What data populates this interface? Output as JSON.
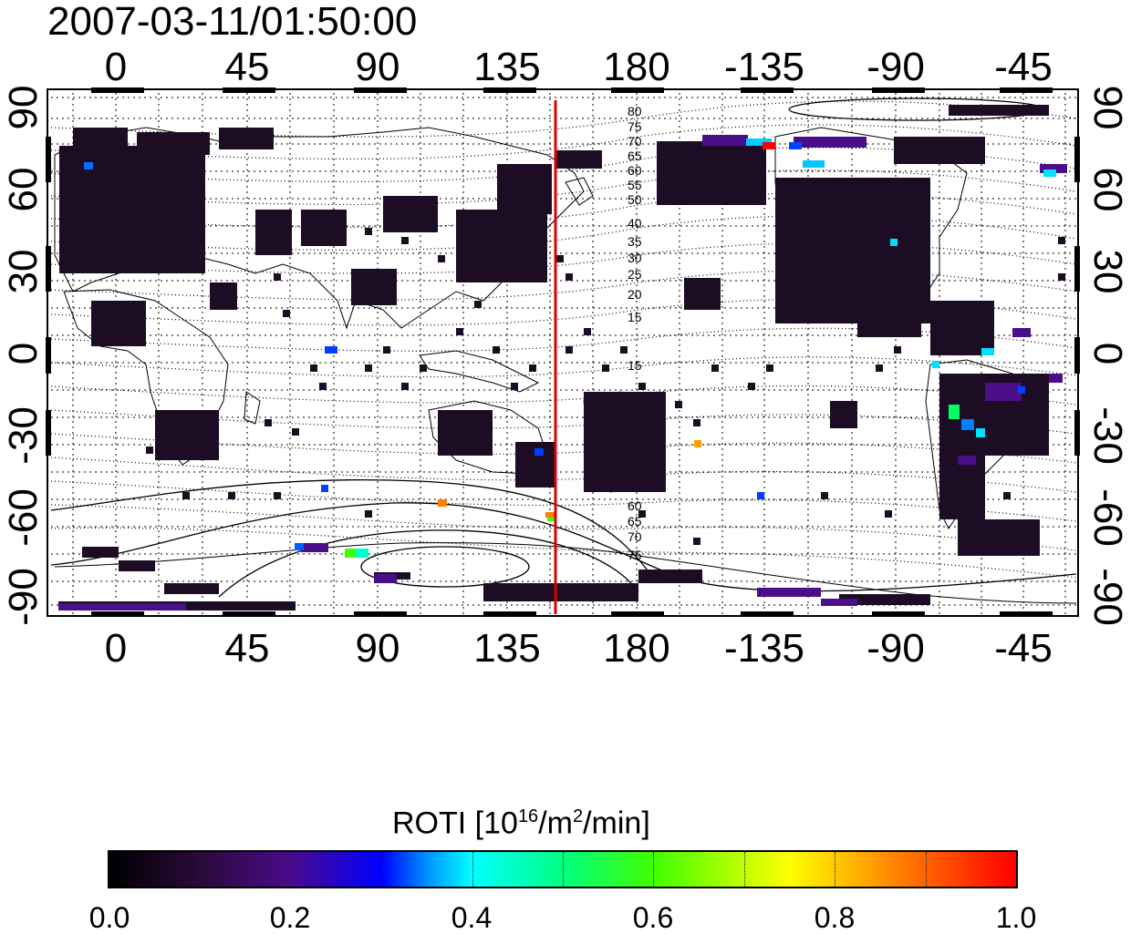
{
  "title": "2007-03-11/01:50:00",
  "x_ticks": [
    "0",
    "45",
    "90",
    "135",
    "180",
    "-135",
    "-90",
    "-45"
  ],
  "y_ticks_left": [
    "90",
    "60",
    "30",
    "0",
    "-30",
    "-60",
    "-90"
  ],
  "y_ticks_right": [
    "90",
    "60",
    "30",
    "0",
    "-30",
    "-60",
    "-90"
  ],
  "contour_labels": [
    "80",
    "75",
    "70",
    "65",
    "60",
    "55",
    "50",
    "40",
    "35",
    "30",
    "25",
    "20",
    "15",
    "15",
    "60",
    "65",
    "70",
    "75"
  ],
  "colorbar": {
    "label_main": "ROTI  [10",
    "label_sup1": "16",
    "label_mid": "/m",
    "label_sup2": "2",
    "label_end": "/min]",
    "ticks": [
      "0.0",
      "0.2",
      "0.4",
      "0.6",
      "0.8",
      "1.0"
    ]
  },
  "colors": {
    "meridian_line": "#dd0000",
    "patch_dark": "#1c0d24",
    "patch_purple": "#4a0f88"
  },
  "map": {
    "projection": "cylindrical longitude/latitude",
    "lon_range": [
      -20,
      340
    ],
    "lat_range": [
      -90,
      90
    ],
    "highlighted_meridian_lon": 152
  }
}
